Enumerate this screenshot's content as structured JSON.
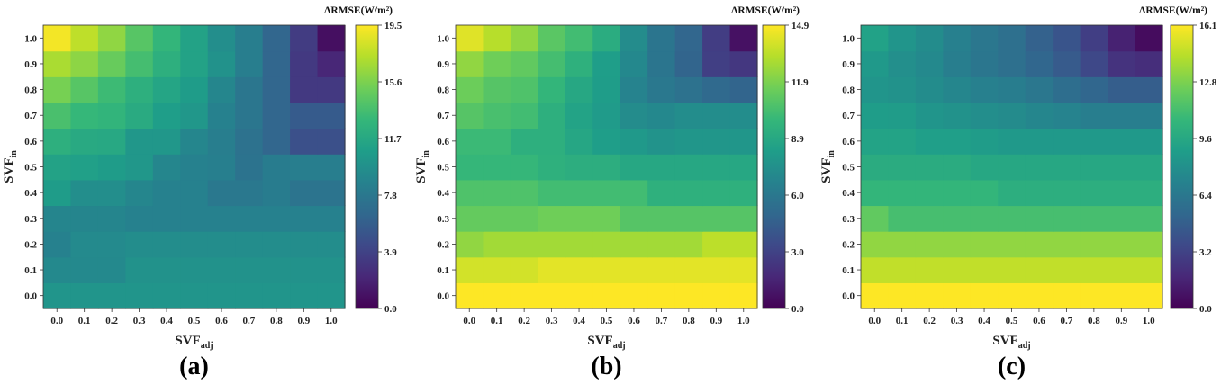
{
  "chart_data": [
    {
      "type": "heatmap",
      "panel_label": "(a)",
      "xlabel": "SVF",
      "xlabel_sub": "adj",
      "ylabel": "SVF",
      "ylabel_sub": "in",
      "x": [
        "0.0",
        "0.1",
        "0.2",
        "0.3",
        "0.4",
        "0.5",
        "0.6",
        "0.7",
        "0.8",
        "0.9",
        "1.0"
      ],
      "y": [
        "0.0",
        "0.1",
        "0.2",
        "0.3",
        "0.4",
        "0.5",
        "0.6",
        "0.7",
        "0.8",
        "0.9",
        "1.0"
      ],
      "z": [
        [
          10.1,
          10.1,
          10.1,
          10.1,
          10.1,
          10.1,
          10.1,
          10.1,
          10.1,
          10.1,
          10.1
        ],
        [
          9.2,
          9.2,
          9.2,
          9.9,
          9.9,
          9.9,
          9.9,
          9.9,
          9.9,
          9.9,
          9.9
        ],
        [
          8.6,
          9.3,
          9.3,
          9.5,
          9.5,
          9.5,
          9.5,
          9.5,
          9.5,
          9.5,
          9.5
        ],
        [
          8.9,
          8.9,
          8.9,
          8.6,
          8.6,
          8.6,
          8.6,
          8.6,
          8.6,
          8.6,
          8.6
        ],
        [
          10.7,
          9.6,
          9.6,
          9.0,
          8.6,
          8.6,
          7.8,
          7.8,
          8.2,
          7.5,
          7.5
        ],
        [
          11.2,
          11.0,
          10.7,
          10.3,
          9.0,
          8.6,
          8.4,
          7.4,
          8.2,
          8.3,
          8.3
        ],
        [
          12.3,
          11.8,
          11.7,
          10.3,
          10.3,
          9.0,
          8.3,
          7.3,
          6.4,
          4.8,
          4.8
        ],
        [
          13.8,
          13.0,
          12.7,
          11.9,
          10.8,
          10.3,
          8.6,
          7.7,
          6.4,
          5.6,
          5.6
        ],
        [
          15.4,
          14.3,
          13.3,
          12.3,
          11.4,
          10.7,
          9.0,
          7.7,
          6.4,
          3.3,
          3.3
        ],
        [
          17.0,
          16.1,
          14.9,
          13.6,
          12.3,
          11.2,
          9.9,
          8.3,
          6.4,
          3.3,
          2.1
        ],
        [
          19.2,
          17.6,
          16.2,
          14.3,
          12.8,
          11.2,
          9.6,
          8.3,
          6.4,
          3.5,
          0.8
        ]
      ],
      "zmin": 0.0,
      "zmax": 19.5,
      "colorbar": {
        "title": "ΔRMSE(W/m²)",
        "ticks": [
          "0.0",
          "3.9",
          "7.8",
          "11.7",
          "15.6",
          "19.5"
        ]
      },
      "colormap": "viridis"
    },
    {
      "type": "heatmap",
      "panel_label": "(b)",
      "xlabel": "SVF",
      "xlabel_sub": "adj",
      "ylabel": "SVF",
      "ylabel_sub": "in",
      "x": [
        "0.0",
        "0.1",
        "0.2",
        "0.3",
        "0.4",
        "0.5",
        "0.6",
        "0.7",
        "0.8",
        "0.9",
        "1.0"
      ],
      "y": [
        "0.0",
        "0.1",
        "0.2",
        "0.3",
        "0.4",
        "0.5",
        "0.6",
        "0.7",
        "0.8",
        "0.9",
        "1.0"
      ],
      "z": [
        [
          14.9,
          14.9,
          14.9,
          14.9,
          14.9,
          14.9,
          14.9,
          14.9,
          14.9,
          14.9,
          14.9
        ],
        [
          13.9,
          13.9,
          13.9,
          14.3,
          14.3,
          14.3,
          14.3,
          14.3,
          14.3,
          14.3,
          14.3
        ],
        [
          12.4,
          12.8,
          12.8,
          12.8,
          12.8,
          12.8,
          12.8,
          12.8,
          12.8,
          13.4,
          13.4
        ],
        [
          11.3,
          11.3,
          11.3,
          11.6,
          11.6,
          11.6,
          10.9,
          10.9,
          10.9,
          10.9,
          10.9
        ],
        [
          10.7,
          10.7,
          10.7,
          10.3,
          10.3,
          10.3,
          10.3,
          9.5,
          9.5,
          9.5,
          9.5
        ],
        [
          9.9,
          9.9,
          9.9,
          9.5,
          9.3,
          9.3,
          8.9,
          8.9,
          8.9,
          8.9,
          8.9
        ],
        [
          10.1,
          10.1,
          9.4,
          9.4,
          8.8,
          8.3,
          8.0,
          7.6,
          7.8,
          7.8,
          7.8
        ],
        [
          10.9,
          10.5,
          10.3,
          9.4,
          8.6,
          8.1,
          7.2,
          7.0,
          7.3,
          7.3,
          7.3
        ],
        [
          11.5,
          10.9,
          10.7,
          9.8,
          8.9,
          8.2,
          6.7,
          6.0,
          5.6,
          5.1,
          4.8
        ],
        [
          12.4,
          11.6,
          11.2,
          10.4,
          9.5,
          8.3,
          7.0,
          5.8,
          4.8,
          2.8,
          2.4
        ],
        [
          14.2,
          13.3,
          12.4,
          11.0,
          10.3,
          9.2,
          7.2,
          5.8,
          4.9,
          2.7,
          0.7
        ]
      ],
      "zmin": 0.0,
      "zmax": 14.9,
      "colorbar": {
        "title": "ΔRMSE(W/m²)",
        "ticks": [
          "0.0",
          "3.0",
          "6.0",
          "8.9",
          "11.9",
          "14.9"
        ]
      },
      "colormap": "viridis"
    },
    {
      "type": "heatmap",
      "panel_label": "(c)",
      "xlabel": "SVF",
      "xlabel_sub": "adj",
      "ylabel": "SVF",
      "ylabel_sub": "in",
      "x": [
        "0.0",
        "0.1",
        "0.2",
        "0.3",
        "0.4",
        "0.5",
        "0.6",
        "0.7",
        "0.8",
        "0.9",
        "1.0"
      ],
      "y": [
        "0.0",
        "0.1",
        "0.2",
        "0.3",
        "0.4",
        "0.5",
        "0.6",
        "0.7",
        "0.8",
        "0.9",
        "1.0"
      ],
      "z": [
        [
          16.1,
          16.1,
          16.1,
          16.1,
          16.1,
          16.1,
          16.1,
          16.1,
          16.1,
          16.1,
          16.1
        ],
        [
          14.6,
          14.6,
          14.6,
          14.6,
          14.6,
          14.6,
          14.6,
          14.6,
          14.6,
          14.6,
          14.6
        ],
        [
          13.4,
          13.4,
          13.4,
          13.4,
          13.4,
          13.4,
          13.4,
          13.4,
          13.4,
          13.4,
          13.4
        ],
        [
          12.1,
          11.3,
          11.3,
          11.3,
          11.3,
          11.3,
          11.3,
          11.3,
          11.3,
          11.3,
          11.3
        ],
        [
          10.6,
          10.6,
          10.6,
          10.6,
          10.6,
          10.1,
          10.1,
          10.1,
          10.1,
          10.1,
          10.1
        ],
        [
          9.9,
          9.9,
          9.9,
          9.9,
          9.6,
          9.6,
          9.6,
          9.6,
          9.6,
          9.6,
          9.6
        ],
        [
          9.3,
          9.3,
          9.0,
          9.0,
          8.8,
          8.6,
          8.6,
          8.6,
          8.6,
          8.6,
          8.6
        ],
        [
          8.9,
          8.8,
          8.4,
          8.2,
          7.9,
          7.7,
          7.4,
          7.2,
          6.9,
          6.9,
          6.9
        ],
        [
          8.4,
          8.2,
          7.8,
          7.4,
          7.0,
          6.8,
          6.4,
          5.8,
          5.3,
          4.8,
          4.8
        ],
        [
          8.6,
          8.0,
          7.6,
          6.9,
          6.3,
          5.9,
          5.3,
          4.6,
          3.5,
          2.4,
          2.1
        ],
        [
          9.2,
          8.4,
          7.8,
          7.0,
          6.4,
          5.9,
          5.0,
          4.2,
          3.0,
          1.5,
          0.5
        ]
      ],
      "zmin": 0.0,
      "zmax": 16.1,
      "colorbar": {
        "title": "ΔRMSE(W/m²)",
        "ticks": [
          "0.0",
          "3.2",
          "6.4",
          "9.6",
          "12.8",
          "16.1"
        ]
      },
      "colormap": "viridis"
    }
  ],
  "palette": {
    "viridis": [
      "#440154",
      "#482878",
      "#3e4989",
      "#31688e",
      "#26828e",
      "#1f9e89",
      "#35b779",
      "#6ece58",
      "#b5de2b",
      "#fde725"
    ]
  }
}
